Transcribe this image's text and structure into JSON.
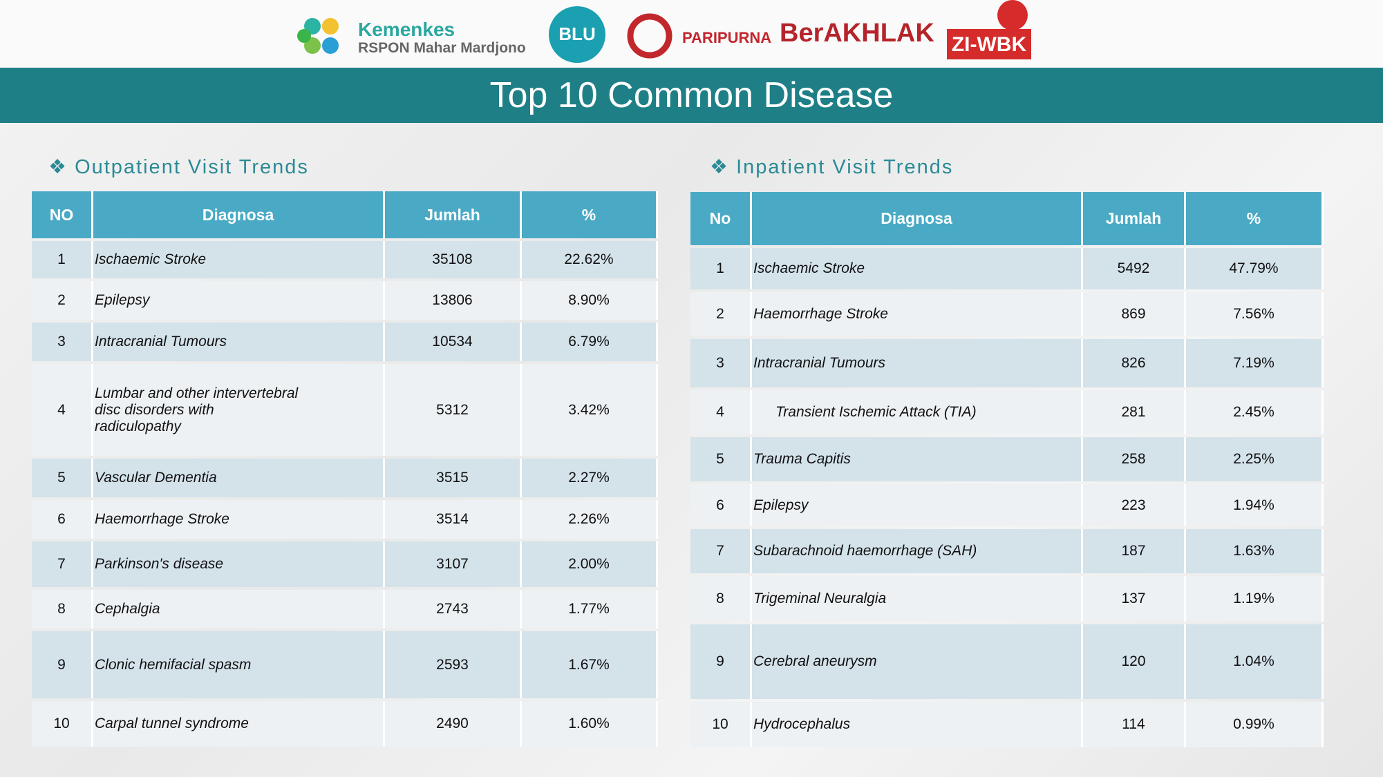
{
  "header": {
    "logos": {
      "kemenkes": "Kemenkes",
      "rspon": "RSPON Mahar Mardjono",
      "blu": "BLU",
      "paripurna": "PARIPURNA",
      "berakhlak": "BerAKHLAK",
      "ziwbk": "ZI-WBK"
    },
    "title": "Top 10 Common Disease"
  },
  "tables": [
    {
      "heading": "Outpatient Visit Trends",
      "columns": [
        "NO",
        "Diagnosa",
        "Jumlah",
        "%"
      ],
      "rows": [
        [
          "1",
          "Ischaemic Stroke",
          "35108",
          "22.62%"
        ],
        [
          "2",
          "Epilepsy",
          "13806",
          "8.90%"
        ],
        [
          "3",
          "Intracranial Tumours",
          "10534",
          "6.79%"
        ],
        [
          "4",
          "Lumbar and other intervertebral disc disorders with radiculopathy",
          "5312",
          "3.42%"
        ],
        [
          "5",
          "Vascular Dementia",
          "3515",
          "2.27%"
        ],
        [
          "6",
          "Haemorrhage Stroke",
          "3514",
          "2.26%"
        ],
        [
          "7",
          "Parkinson's disease",
          "3107",
          "2.00%"
        ],
        [
          "8",
          "Cephalgia",
          "2743",
          "1.77%"
        ],
        [
          "9",
          "Clonic hemifacial spasm",
          "2593",
          "1.67%"
        ],
        [
          "10",
          "Carpal tunnel syndrome",
          "2490",
          "1.60%"
        ]
      ]
    },
    {
      "heading": "Inpatient Visit Trends",
      "columns": [
        "No",
        "Diagnosa",
        "Jumlah",
        "%"
      ],
      "rows": [
        [
          "1",
          "Ischaemic Stroke",
          "5492",
          "47.79%"
        ],
        [
          "2",
          "Haemorrhage Stroke",
          "869",
          "7.56%"
        ],
        [
          "3",
          "Intracranial Tumours",
          "826",
          "7.19%"
        ],
        [
          "4",
          "Transient Ischemic Attack (TIA)",
          "281",
          "2.45%"
        ],
        [
          "5",
          "Trauma Capitis",
          "258",
          "2.25%"
        ],
        [
          "6",
          "Epilepsy",
          "223",
          "1.94%"
        ],
        [
          "7",
          "Subarachnoid haemorrhage (SAH)",
          "187",
          "1.63%"
        ],
        [
          "8",
          "Trigeminal Neuralgia",
          "137",
          "1.19%"
        ],
        [
          "9",
          "Cerebral aneurysm",
          "120",
          "1.04%"
        ],
        [
          "10",
          "Hydrocephalus",
          "114",
          "0.99%"
        ]
      ]
    }
  ]
}
